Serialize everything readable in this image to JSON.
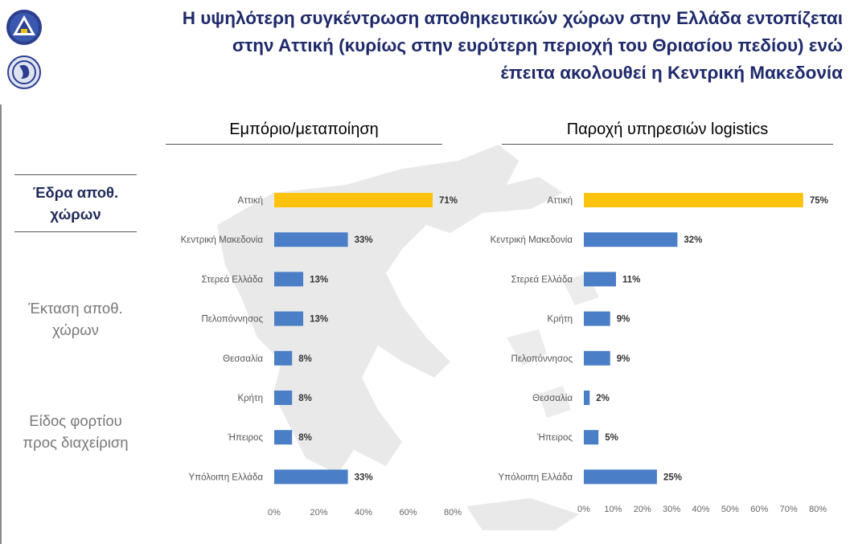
{
  "title": {
    "line1": "Η υψηλότερη συγκέντρωση αποθηκευτικών χώρων στην Ελλάδα εντοπίζεται",
    "line2": "στην Αττική (κυρίως στην ευρύτερη περιοχή του Θριασίου πεδίου) ενώ",
    "line3": "έπειτα ακολουθεί η Κεντρική Μακεδονία"
  },
  "sidebar": {
    "items": [
      {
        "label": "Έδρα αποθ. χώρων",
        "active": true
      },
      {
        "label": "Έκταση αποθ. χώρων",
        "active": false
      },
      {
        "label": "Είδος φορτίου προς διαχείριση",
        "active": false
      }
    ]
  },
  "colors": {
    "highlight": "#FFC20E",
    "bar": "#4A7EC7",
    "title": "#1f2a6b"
  },
  "chart_data": [
    {
      "type": "bar",
      "orientation": "horizontal",
      "title": "Εμπόριο/μεταποίηση",
      "categories": [
        "Αττική",
        "Κεντρική Μακεδονία",
        "Στερεά Ελλάδα",
        "Πελοπόννησος",
        "Θεσσαλία",
        "Κρήτη",
        "Ήπειρος",
        "Υπόλοιπη Ελλάδα"
      ],
      "values": [
        71,
        33,
        13,
        13,
        8,
        8,
        8,
        33
      ],
      "value_labels": [
        "71%",
        "33%",
        "13%",
        "13%",
        "8%",
        "8%",
        "8%",
        "33%"
      ],
      "highlight_index": 0,
      "xlim": [
        0,
        80
      ],
      "xticks": [
        "0%",
        "20%",
        "40%",
        "60%",
        "80%"
      ],
      "grid": false
    },
    {
      "type": "bar",
      "orientation": "horizontal",
      "title": "Παροχή υπηρεσιών logistics",
      "categories": [
        "Αττική",
        "Κεντρική Μακεδονία",
        "Στερεά Ελλάδα",
        "Κρήτη",
        "Πελοπόννησος",
        "Θεσσαλία",
        "Ήπειρος",
        "Υπόλοιπη Ελλάδα"
      ],
      "values": [
        75,
        32,
        11,
        9,
        9,
        2,
        5,
        25
      ],
      "value_labels": [
        "75%",
        "32%",
        "11%",
        "9%",
        "9%",
        "2%",
        "5%",
        "25%"
      ],
      "highlight_index": 0,
      "xlim": [
        0,
        80
      ],
      "xticks": [
        "0%",
        "10%",
        "20%",
        "30%",
        "40%",
        "50%",
        "60%",
        "70%",
        "80%"
      ],
      "grid": false
    }
  ]
}
